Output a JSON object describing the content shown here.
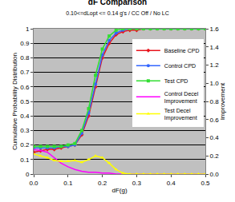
{
  "chart_data": {
    "type": "line",
    "title": "dF Comparison",
    "subtitle": "0.10<=dLopt <= 0.14 g's / CC Off / No LC",
    "x_label": "dF(g)",
    "y_label": "Cumulative Probability Distribution",
    "y2_label": "Improvement",
    "x": [
      0,
      0.02,
      0.04,
      0.06,
      0.08,
      0.1,
      0.12,
      0.14,
      0.16,
      0.18,
      0.2,
      0.22,
      0.24,
      0.26,
      0.28,
      0.3,
      0.32,
      0.34,
      0.36,
      0.38,
      0.4,
      0.42,
      0.44,
      0.46,
      0.48,
      0.5
    ],
    "series": [
      {
        "name": "Baseline CPD",
        "color": "#e8141c",
        "marker": "diamond",
        "line_style": "solid",
        "values": [
          0.15,
          0.16,
          0.17,
          0.17,
          0.18,
          0.19,
          0.2,
          0.27,
          0.4,
          0.6,
          0.8,
          0.9,
          0.96,
          0.98,
          0.99,
          0.99,
          1,
          1,
          1,
          1,
          1,
          1,
          1,
          1,
          1,
          1
        ]
      },
      {
        "name": "Control CPD",
        "color": "#3366ff",
        "marker": "circle",
        "line_style": "solid",
        "values": [
          0.18,
          0.18,
          0.18,
          0.18,
          0.19,
          0.19,
          0.2,
          0.28,
          0.42,
          0.62,
          0.82,
          0.92,
          0.97,
          0.99,
          1,
          1,
          1,
          1,
          1,
          1,
          1,
          1,
          1,
          1,
          1,
          1
        ]
      },
      {
        "name": "Test CPD",
        "color": "#33dd33",
        "marker": "square",
        "line_style": "solid",
        "values": [
          0.19,
          0.19,
          0.19,
          0.19,
          0.19,
          0.2,
          0.21,
          0.3,
          0.45,
          0.68,
          0.86,
          0.95,
          0.99,
          1,
          1,
          1,
          1,
          1,
          1,
          1,
          1,
          1,
          1,
          1,
          1,
          1
        ]
      },
      {
        "name": "Control Decel Improvement",
        "color": "#ff00ff",
        "marker": "none",
        "line_style": "solid",
        "axis": "y2",
        "values": [
          0.27,
          0.26,
          0.24,
          0.18,
          0.12,
          0.08,
          0.05,
          0.03,
          0.02,
          0.02,
          0.01,
          0.01,
          0,
          0,
          0,
          0,
          0,
          0,
          0,
          0,
          0,
          0,
          0,
          0,
          0,
          0
        ]
      },
      {
        "name": "Test Decel Improvement",
        "color": "#ffff00",
        "marker": "triangle-up",
        "line_style": "solid",
        "axis": "y2",
        "values": [
          0.22,
          0.2,
          0.18,
          0.15,
          0.14,
          0.14,
          0.15,
          0.13,
          0.16,
          0.2,
          0.18,
          0.12,
          0.05,
          0.01,
          0,
          0,
          0,
          0,
          0,
          0,
          0,
          0,
          0,
          0,
          0,
          0
        ]
      }
    ],
    "xlim": [
      0,
      0.5
    ],
    "xticks": [
      {
        "value": 0,
        "label": "0.0"
      },
      0.1,
      0.2,
      0.3,
      0.4,
      0.5
    ],
    "ylim": [
      0,
      1
    ],
    "yticks": [
      0,
      0.1,
      0.2,
      0.3,
      0.4,
      0.5,
      0.6,
      0.7,
      0.8,
      0.9,
      1
    ],
    "y2lim": [
      0,
      1.6
    ],
    "y2ticks": [
      {
        "value": 0,
        "label": "0.0"
      },
      0.2,
      0.4,
      0.6,
      0.8,
      {
        "value": 1,
        "label": "1.0"
      },
      1.2,
      1.4,
      1.6
    ],
    "grid": true,
    "legend": "right"
  }
}
